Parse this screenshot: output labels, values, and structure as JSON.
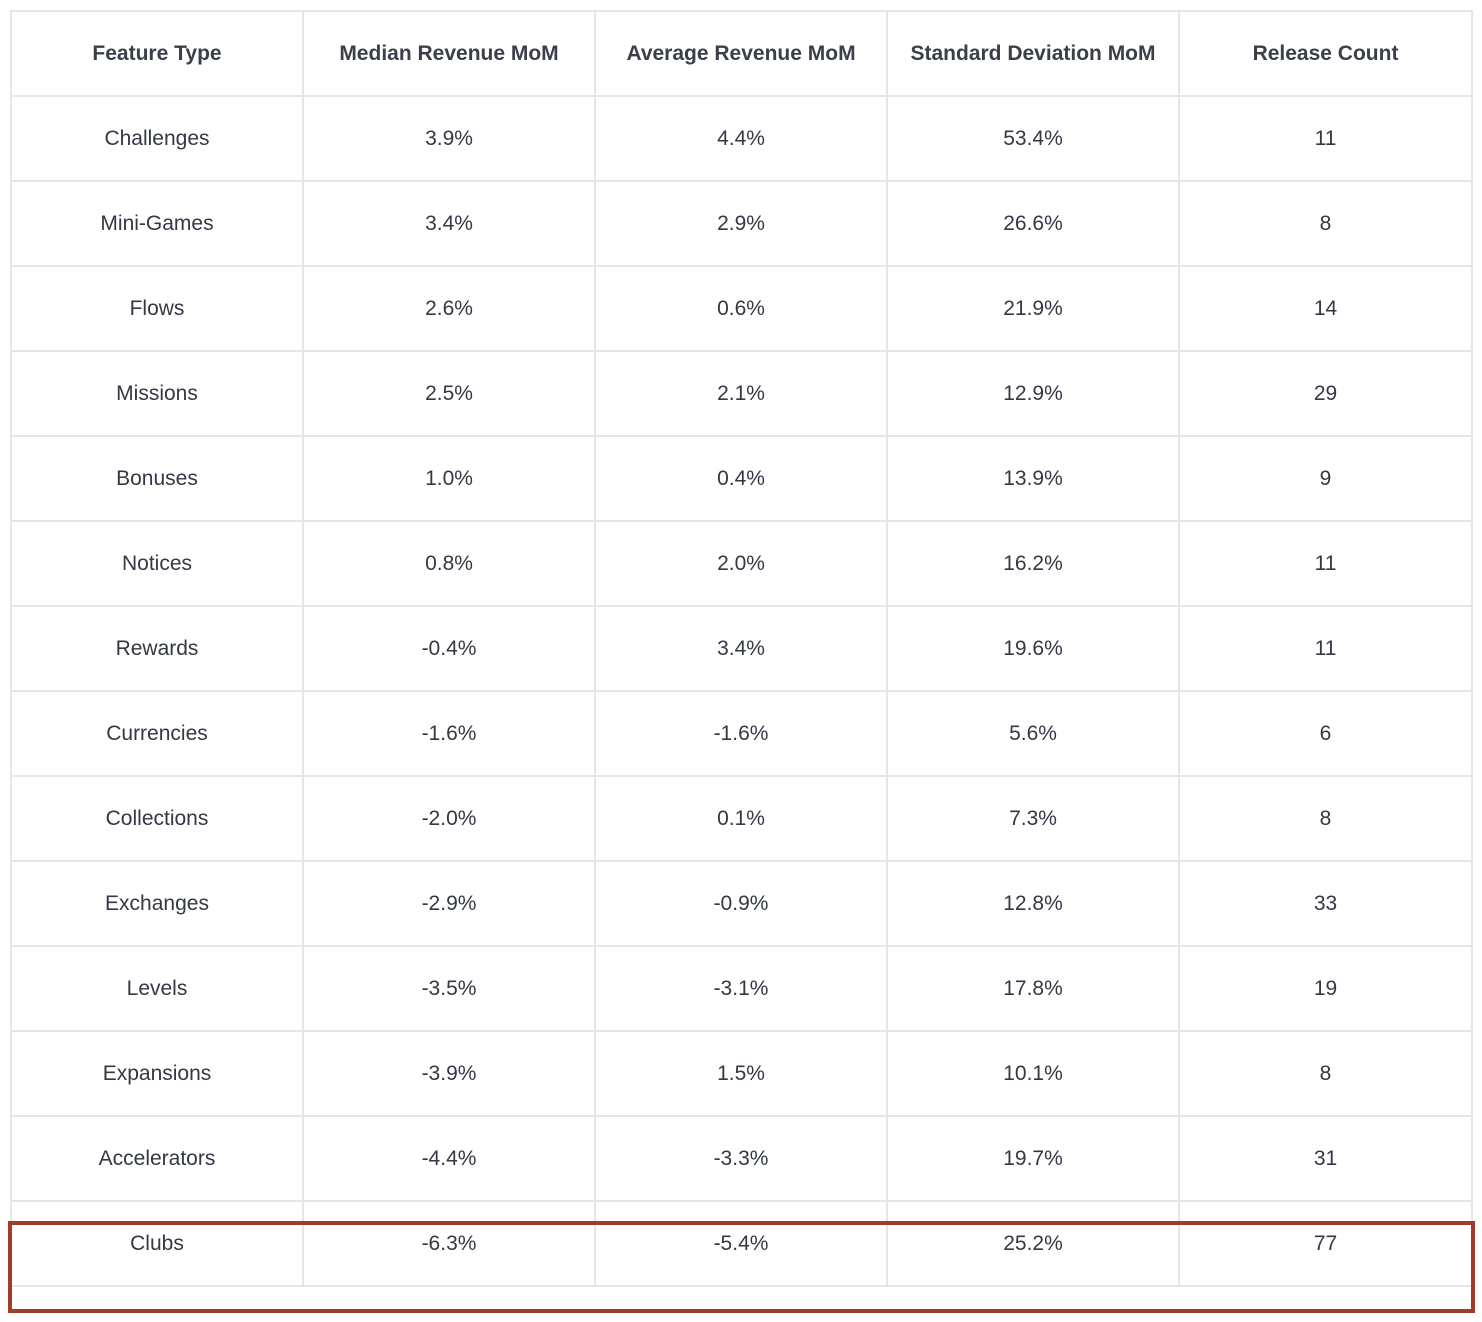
{
  "chart_data": {
    "type": "table",
    "columns": [
      "Feature Type",
      "Median Revenue MoM",
      "Average Revenue MoM",
      "Standard Deviation MoM",
      "Release Count"
    ],
    "rows": [
      [
        "Challenges",
        "3.9%",
        "4.4%",
        "53.4%",
        "11"
      ],
      [
        "Mini-Games",
        "3.4%",
        "2.9%",
        "26.6%",
        "8"
      ],
      [
        "Flows",
        "2.6%",
        "0.6%",
        "21.9%",
        "14"
      ],
      [
        "Missions",
        "2.5%",
        "2.1%",
        "12.9%",
        "29"
      ],
      [
        "Bonuses",
        "1.0%",
        "0.4%",
        "13.9%",
        "9"
      ],
      [
        "Notices",
        "0.8%",
        "2.0%",
        "16.2%",
        "11"
      ],
      [
        "Rewards",
        "-0.4%",
        "3.4%",
        "19.6%",
        "11"
      ],
      [
        "Currencies",
        "-1.6%",
        "-1.6%",
        "5.6%",
        "6"
      ],
      [
        "Collections",
        "-2.0%",
        "0.1%",
        "7.3%",
        "8"
      ],
      [
        "Exchanges",
        "-2.9%",
        "-0.9%",
        "12.8%",
        "33"
      ],
      [
        "Levels",
        "-3.5%",
        "-3.1%",
        "17.8%",
        "19"
      ],
      [
        "Expansions",
        "-3.9%",
        "1.5%",
        "10.1%",
        "8"
      ],
      [
        "Accelerators",
        "-4.4%",
        "-3.3%",
        "19.7%",
        "31"
      ],
      [
        "Clubs",
        "-6.3%",
        "-5.4%",
        "25.2%",
        "77"
      ]
    ],
    "highlighted_row": "Clubs",
    "highlight_color": "#a23b2b"
  }
}
